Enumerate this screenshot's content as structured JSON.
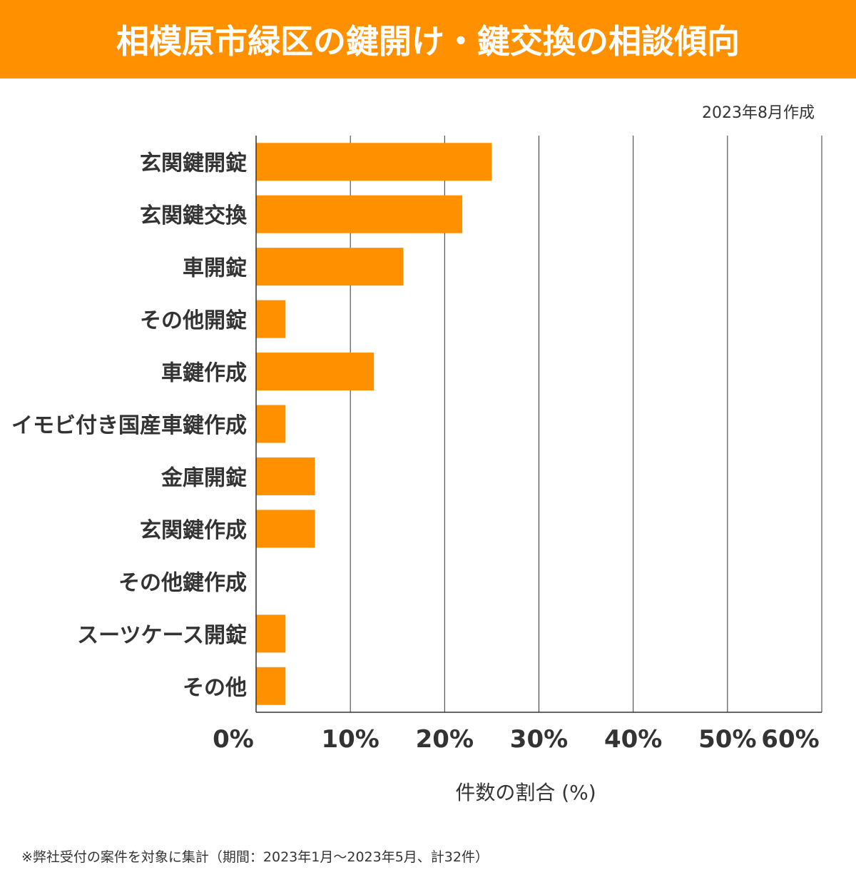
{
  "title": "相模原市緑区の鍵開け・鍵交換の相談傾向",
  "date_label": "2023年8月作成",
  "footnote": "※弊社受付の案件を対象に集計（期間：2023年1月～2023年5月、計32件）",
  "chart_data": {
    "type": "bar",
    "orientation": "horizontal",
    "categories": [
      "玄関鍵開錠",
      "玄関鍵交換",
      "車開錠",
      "その他開錠",
      "車鍵作成",
      "イモビ付き国産車鍵作成",
      "金庫開錠",
      "玄関鍵作成",
      "その他鍵作成",
      "スーツケース開錠",
      "その他"
    ],
    "values": [
      25,
      21.875,
      15.625,
      3.125,
      12.5,
      3.125,
      6.25,
      6.25,
      0,
      3.125,
      3.125
    ],
    "xlabel": "件数の割合 (%)",
    "xlim": [
      0,
      60
    ],
    "xticks": [
      "0%",
      "10%",
      "20%",
      "30%",
      "40%",
      "50%",
      "60%"
    ],
    "grid": "vertical",
    "bar_color": "#FF9100"
  }
}
